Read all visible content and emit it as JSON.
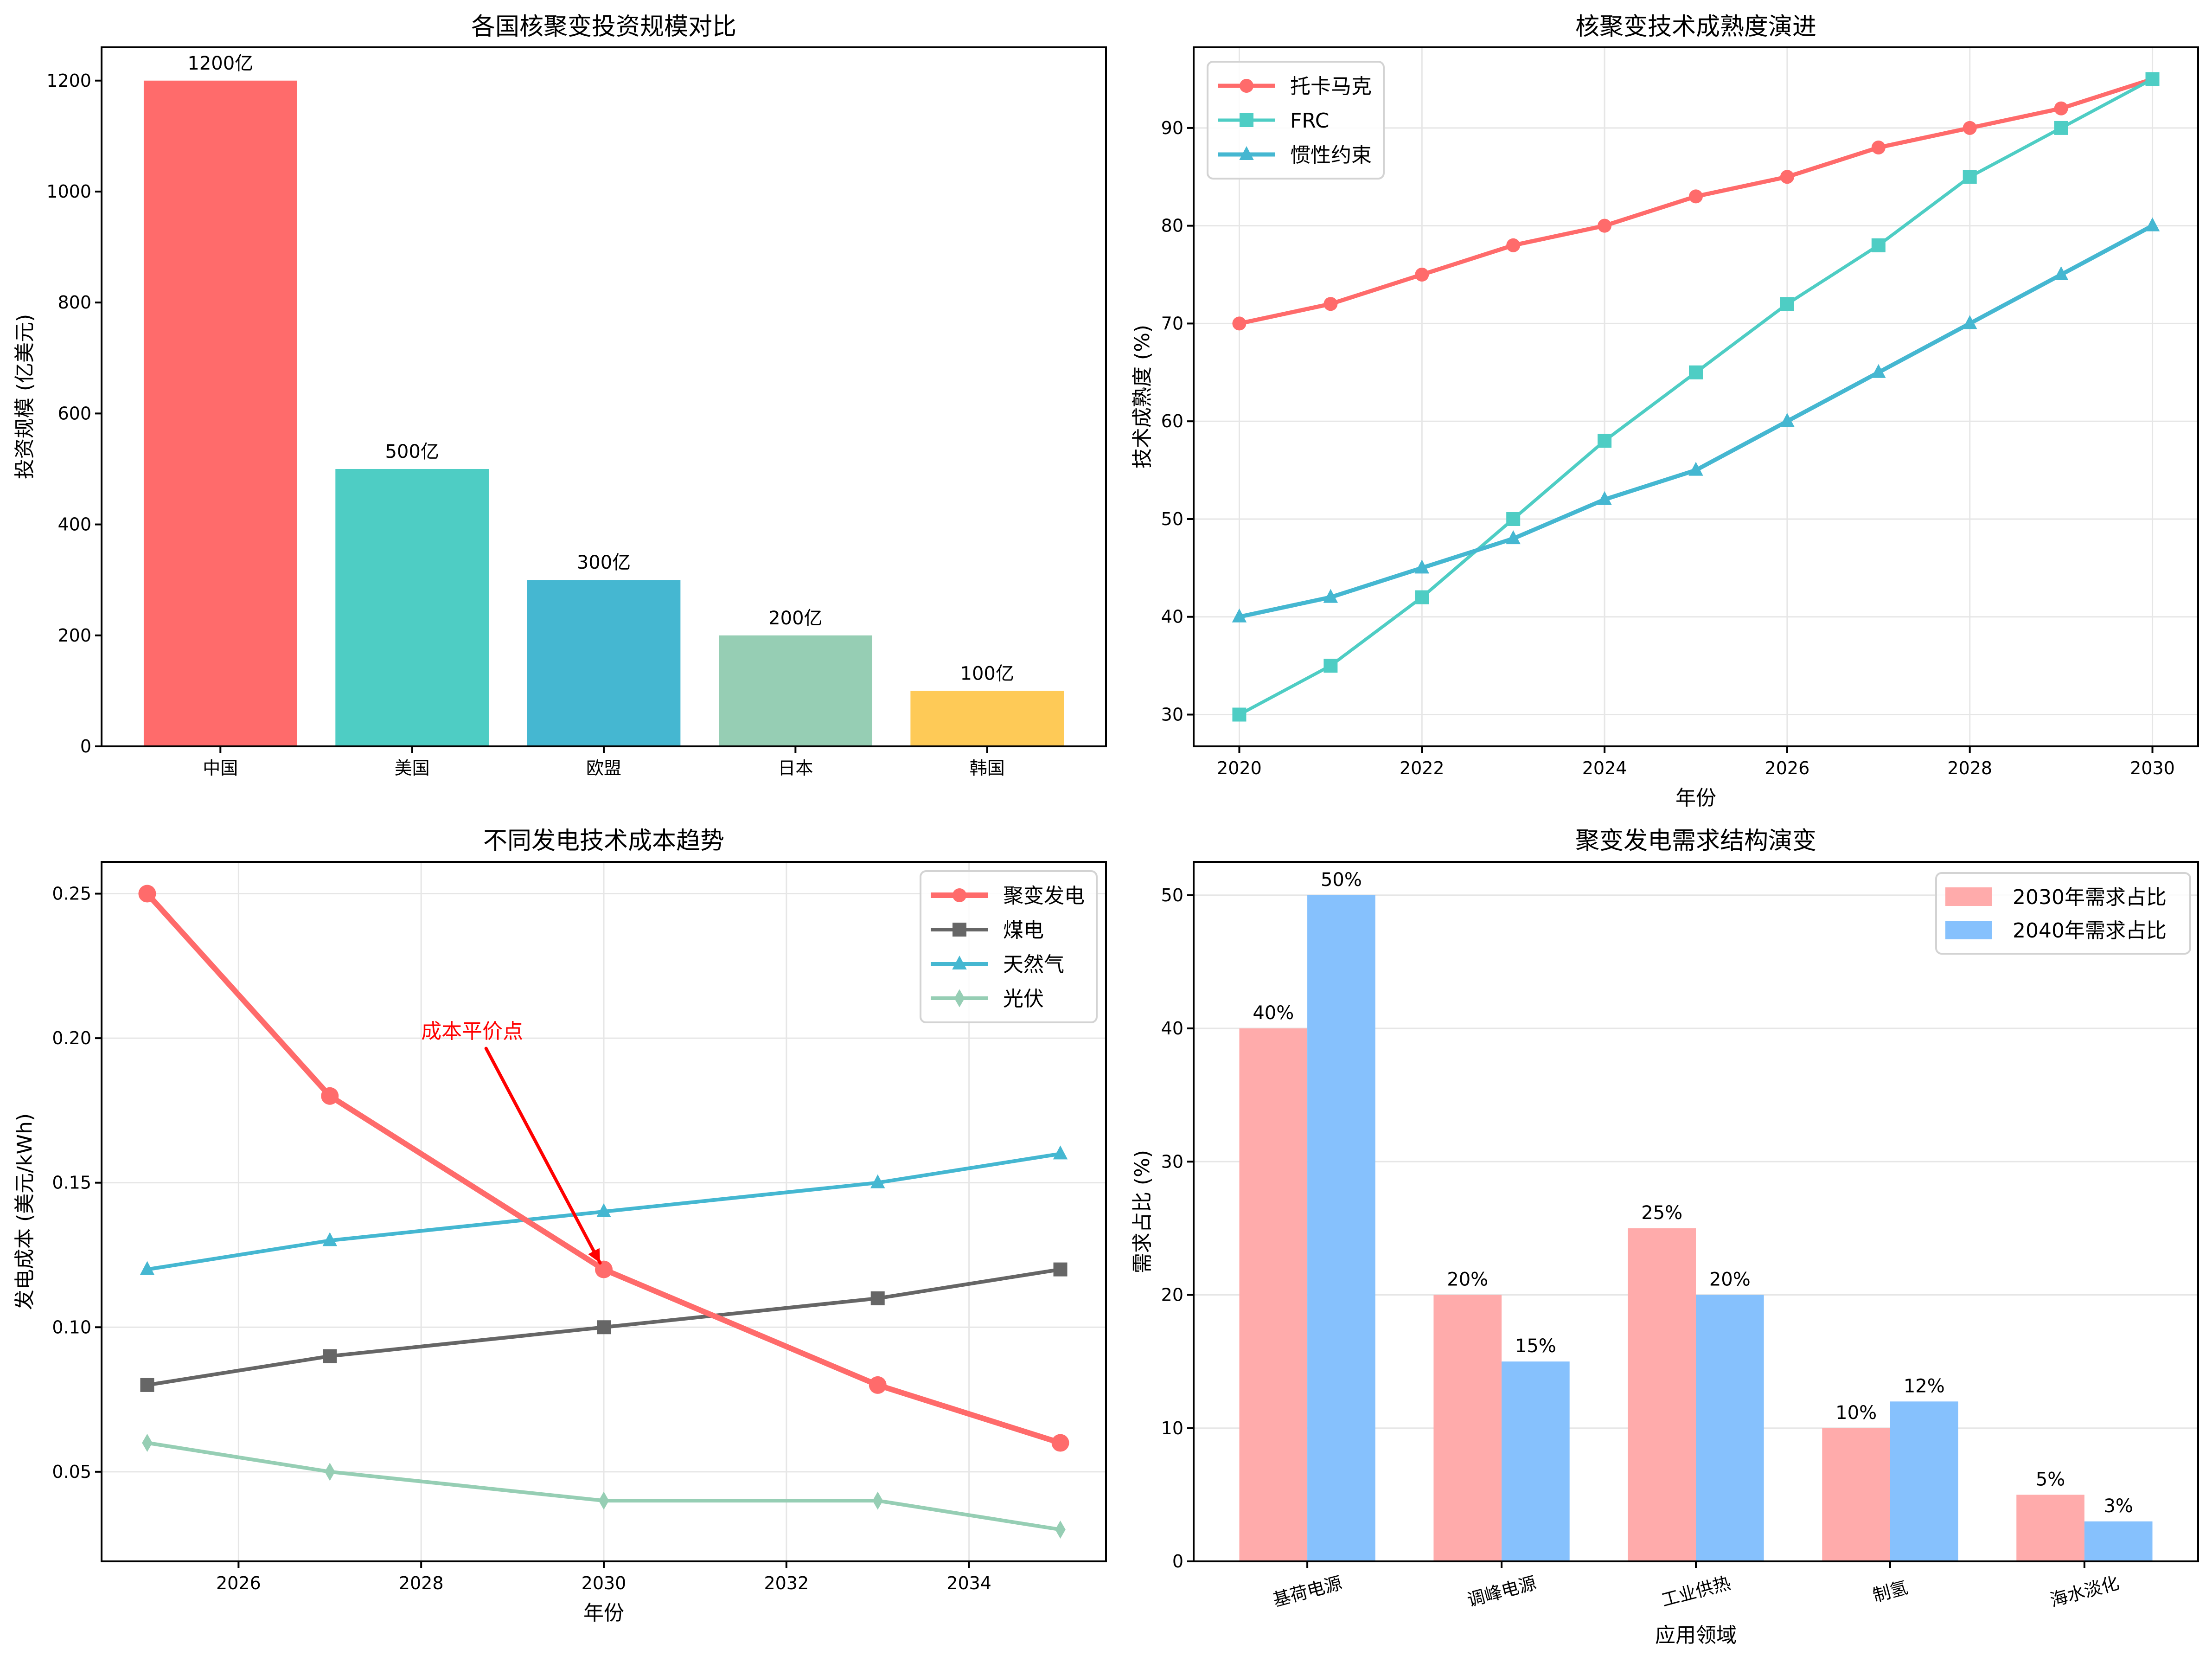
{
  "chart_data": [
    {
      "id": "investment",
      "type": "bar",
      "title": "各国核聚变投资规模对比",
      "xlabel": "",
      "ylabel": "投资规模 (亿美元)",
      "categories": [
        "中国",
        "美国",
        "欧盟",
        "日本",
        "韩国"
      ],
      "values": [
        1200,
        500,
        300,
        200,
        100
      ],
      "data_labels": [
        "1200亿",
        "500亿",
        "300亿",
        "200亿",
        "100亿"
      ],
      "colors": [
        "#FF6B6B",
        "#4ECDC4",
        "#45B7D1",
        "#96CEB4",
        "#FECA57"
      ],
      "ylim": [
        0,
        1260
      ],
      "yticks": [
        0,
        200,
        400,
        600,
        800,
        1000,
        1200
      ],
      "ytick_labels": [
        "0",
        "200",
        "400",
        "600",
        "800",
        "1000",
        "1200"
      ],
      "grid": false,
      "legend": null
    },
    {
      "id": "maturity",
      "type": "line",
      "title": "核聚变技术成熟度演进",
      "xlabel": "年份",
      "ylabel": "技术成熟度 (%)",
      "x": [
        2020,
        2021,
        2022,
        2023,
        2024,
        2025,
        2026,
        2027,
        2028,
        2029,
        2030
      ],
      "series": [
        {
          "name": "托卡马克",
          "marker": "circle",
          "color": "#FF6B6B",
          "values": [
            70,
            72,
            75,
            78,
            80,
            83,
            85,
            88,
            90,
            92,
            95
          ]
        },
        {
          "name": "FRC",
          "marker": "square",
          "color": "#4ECDC4",
          "values": [
            30,
            35,
            42,
            50,
            58,
            65,
            72,
            78,
            85,
            90,
            95
          ]
        },
        {
          "name": "惯性约束",
          "marker": "triangle",
          "color": "#45B7D1",
          "values": [
            40,
            42,
            45,
            48,
            52,
            55,
            60,
            65,
            70,
            75,
            80
          ]
        }
      ],
      "xlim": [
        2019.5,
        2030.5
      ],
      "ylim": [
        26.75,
        98.25
      ],
      "xticks": [
        2020,
        2022,
        2024,
        2026,
        2028,
        2030
      ],
      "xtick_labels": [
        "2020",
        "2022",
        "2024",
        "2026",
        "2028",
        "2030"
      ],
      "yticks": [
        30,
        40,
        50,
        60,
        70,
        80,
        90
      ],
      "ytick_labels": [
        "30",
        "40",
        "50",
        "60",
        "70",
        "80",
        "90"
      ],
      "grid": true,
      "legend": "top-left"
    },
    {
      "id": "cost",
      "type": "line",
      "title": "不同发电技术成本趋势",
      "xlabel": "年份",
      "ylabel": "发电成本 (美元/kWh)",
      "x": [
        2025,
        2027,
        2030,
        2033,
        2035
      ],
      "series": [
        {
          "name": "聚变发电",
          "marker": "circle",
          "color": "#FF6B6B",
          "values": [
            0.25,
            0.18,
            0.12,
            0.08,
            0.06
          ]
        },
        {
          "name": "煤电",
          "marker": "square",
          "color": "#666666",
          "values": [
            0.08,
            0.09,
            0.1,
            0.11,
            0.12
          ]
        },
        {
          "name": "天然气",
          "marker": "triangle",
          "color": "#45B7D1",
          "values": [
            0.12,
            0.13,
            0.14,
            0.15,
            0.16
          ]
        },
        {
          "name": "光伏",
          "marker": "diamond",
          "color": "#96CEB4",
          "values": [
            0.06,
            0.05,
            0.04,
            0.04,
            0.03
          ]
        }
      ],
      "xlim": [
        2024.5,
        2035.5
      ],
      "ylim": [
        0.019,
        0.261
      ],
      "xticks": [
        2026,
        2028,
        2030,
        2032,
        2034
      ],
      "xtick_labels": [
        "2026",
        "2028",
        "2030",
        "2032",
        "2034"
      ],
      "yticks": [
        0.05,
        0.1,
        0.15,
        0.2,
        0.25
      ],
      "ytick_labels": [
        "0.05",
        "0.10",
        "0.15",
        "0.20",
        "0.25"
      ],
      "grid": true,
      "legend": "top-right",
      "annotation": {
        "text": "成本平价点",
        "xy": [
          2030,
          0.12
        ],
        "xytext": [
          2028,
          0.2
        ],
        "color": "#FF0000"
      }
    },
    {
      "id": "demand",
      "type": "bar",
      "title": "聚变发电需求结构演变",
      "xlabel": "应用领域",
      "ylabel": "需求占比 (%)",
      "categories": [
        "基荷电源",
        "调峰电源",
        "工业供热",
        "制氢",
        "海水淡化"
      ],
      "series": [
        {
          "name": "2030年需求占比",
          "color": "#FFABAB",
          "values": [
            40,
            20,
            25,
            10,
            5
          ],
          "data_labels": [
            "40%",
            "20%",
            "25%",
            "10%",
            "5%"
          ]
        },
        {
          "name": "2040年需求占比",
          "color": "#86C1FD",
          "values": [
            50,
            15,
            20,
            12,
            3
          ],
          "data_labels": [
            "50%",
            "15%",
            "20%",
            "12%",
            "3%"
          ]
        }
      ],
      "ylim": [
        0,
        52.5
      ],
      "yticks": [
        0,
        10,
        20,
        30,
        40,
        50
      ],
      "ytick_labels": [
        "0",
        "10",
        "20",
        "30",
        "40",
        "50"
      ],
      "xtick_rotation_deg": 15,
      "grid": true,
      "legend": "top-right"
    }
  ]
}
